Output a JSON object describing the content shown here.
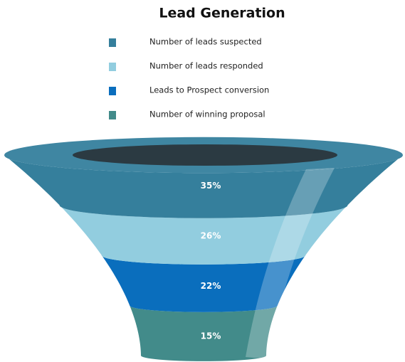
{
  "chart_data": {
    "type": "funnel",
    "title": "Lead Generation",
    "categories": [
      "Number of leads suspected",
      "Number of leads responded",
      "Leads to Prospect conversion",
      "Number of winning proposal"
    ],
    "values": [
      35,
      26,
      22,
      15
    ],
    "value_labels": [
      "35%",
      "26%",
      "22%",
      "15%"
    ],
    "colors": [
      "#357f9c",
      "#92cddf",
      "#0a6ebd",
      "#428b8a"
    ]
  }
}
